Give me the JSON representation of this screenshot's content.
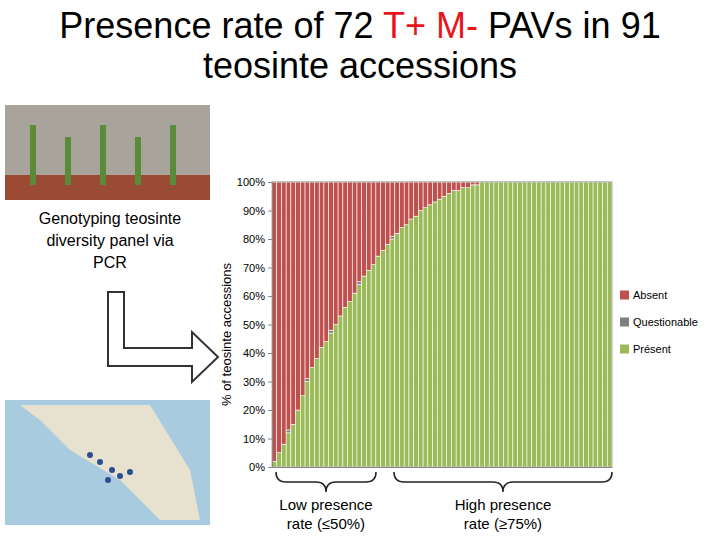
{
  "chart_data": {
    "type": "bar",
    "title": "Presence rate of 72 T+ M- PAVs in 91 teosinte accessions",
    "y_label": "% of teosinte accessions",
    "annotations": [
      "Genotyping teosinte diversity panel via PCR",
      "Low presence rate (≤50%)",
      "High presence rate (≥75%)"
    ],
    "categories": [
      null,
      null,
      null,
      null,
      null,
      null,
      null,
      null,
      null,
      null,
      null,
      null,
      null,
      null,
      null,
      null,
      null,
      null,
      null,
      null,
      null,
      null,
      null,
      null,
      null,
      null,
      null,
      null,
      null,
      null,
      null,
      null,
      null,
      null,
      null,
      null,
      null,
      null,
      null,
      null,
      null,
      null,
      null,
      null,
      null,
      null,
      null,
      null,
      null,
      null,
      null,
      null,
      null,
      null,
      null,
      null,
      null,
      null,
      null,
      null,
      null,
      null,
      null,
      null,
      null,
      null,
      null,
      null,
      null,
      null,
      null,
      null
    ],
    "series": [
      {
        "name": "Absent",
        "color": "#c0504d",
        "values": [
          98,
          95,
          92,
          87,
          85,
          80,
          75,
          69,
          65,
          62,
          58,
          56,
          52,
          50,
          47,
          44,
          42,
          39,
          35,
          33,
          31,
          29,
          26,
          24,
          22,
          19,
          18,
          16,
          15,
          13,
          12,
          10,
          9,
          8,
          7,
          6,
          5,
          4,
          3,
          3,
          2,
          2,
          1,
          1,
          0,
          0,
          0,
          0,
          0,
          0,
          0,
          0,
          0,
          0,
          0,
          0,
          0,
          0,
          0,
          0,
          0,
          0,
          0,
          0,
          0,
          0,
          0,
          0,
          0,
          0,
          0,
          0
        ]
      },
      {
        "name": "Questionable",
        "color": "#7f7f7f",
        "values": [
          0,
          0,
          0,
          1,
          0,
          0,
          0,
          1,
          0,
          0,
          0,
          0,
          1,
          0,
          0,
          0,
          0,
          0,
          1,
          0,
          0,
          0,
          0,
          0,
          0,
          1,
          0,
          0,
          0,
          0,
          0,
          0,
          0,
          0,
          0,
          0,
          0,
          0,
          0,
          0,
          0,
          0,
          0,
          0,
          0,
          0,
          0,
          0,
          0,
          0,
          0,
          0,
          0,
          0,
          0,
          0,
          0,
          0,
          0,
          0,
          0,
          0,
          0,
          0,
          0,
          0,
          0,
          0,
          0,
          0,
          0,
          0
        ]
      },
      {
        "name": "Présent",
        "color": "#9bbb59",
        "values": [
          2,
          5,
          8,
          12,
          15,
          20,
          25,
          30,
          35,
          38,
          42,
          44,
          47,
          50,
          53,
          56,
          58,
          61,
          64,
          67,
          69,
          71,
          74,
          76,
          78,
          80,
          82,
          84,
          85,
          87,
          88,
          90,
          91,
          92,
          93,
          94,
          95,
          96,
          97,
          97,
          98,
          98,
          99,
          99,
          100,
          100,
          100,
          100,
          100,
          100,
          100,
          100,
          100,
          100,
          100,
          100,
          100,
          100,
          100,
          100,
          100,
          100,
          100,
          100,
          100,
          100,
          100,
          100,
          100,
          100,
          100,
          100
        ]
      }
    ],
    "ylim": [
      0,
      100
    ],
    "yticks": [
      {
        "value": 0,
        "label": "0%"
      },
      {
        "value": 10,
        "label": "10%"
      },
      {
        "value": 20,
        "label": "20%"
      },
      {
        "value": 30,
        "label": "30%"
      },
      {
        "value": 40,
        "label": "40%"
      },
      {
        "value": 50,
        "label": "50%"
      },
      {
        "value": 60,
        "label": "60%"
      },
      {
        "value": 70,
        "label": "70%"
      },
      {
        "value": 80,
        "label": "80%"
      },
      {
        "value": 90,
        "label": "90%"
      },
      {
        "value": 100,
        "label": "100%"
      }
    ],
    "grid": true,
    "stacked": true,
    "legend": "right",
    "tick_labels": "y"
  }
}
